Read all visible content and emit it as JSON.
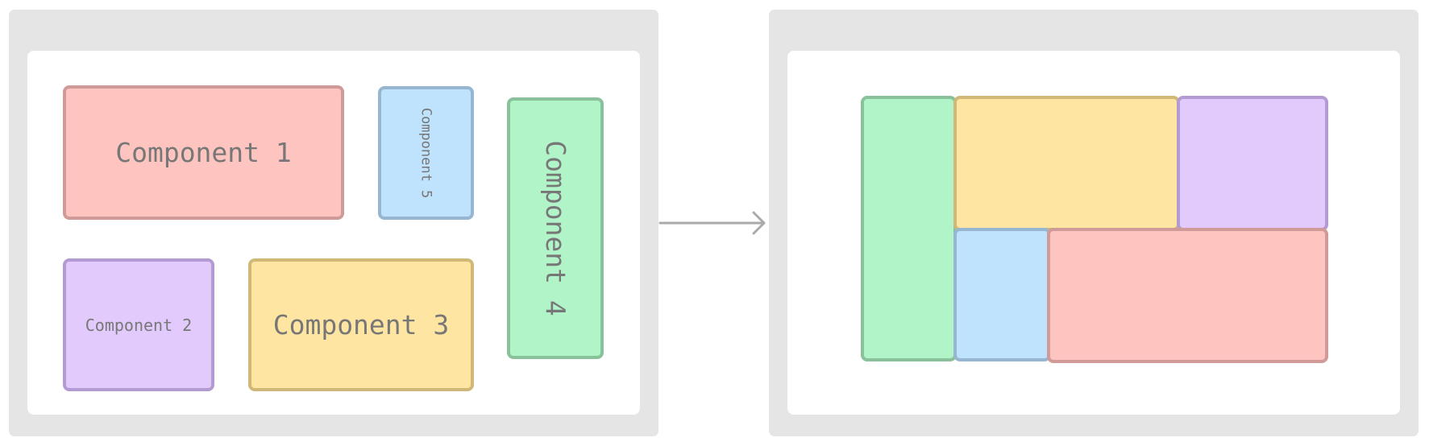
{
  "diagram": {
    "description_role": "before-after layout packing",
    "before": {
      "components": [
        {
          "id": "c1",
          "label": "Component 1",
          "color": "red"
        },
        {
          "id": "c2",
          "label": "Component 2",
          "color": "purple"
        },
        {
          "id": "c3",
          "label": "Component 3",
          "color": "yellow"
        },
        {
          "id": "c4",
          "label": "Component 4",
          "color": "green"
        },
        {
          "id": "c5",
          "label": "Component 5",
          "color": "blue"
        }
      ]
    },
    "after": {
      "components": [
        {
          "id": "c4",
          "color": "green"
        },
        {
          "id": "c3",
          "color": "yellow"
        },
        {
          "id": "c2",
          "color": "purple"
        },
        {
          "id": "c5",
          "color": "blue"
        },
        {
          "id": "c1",
          "color": "red"
        }
      ]
    },
    "colors": {
      "red": "#fec5c0",
      "purple": "#e2cbfc",
      "yellow": "#fee6a2",
      "blue": "#bfe2fd",
      "green": "#b0f4c8",
      "panel": "#e5e5e5",
      "arrow": "#aaaaaa",
      "text": "#777777"
    },
    "arrow_icon": "arrow-right-icon"
  }
}
